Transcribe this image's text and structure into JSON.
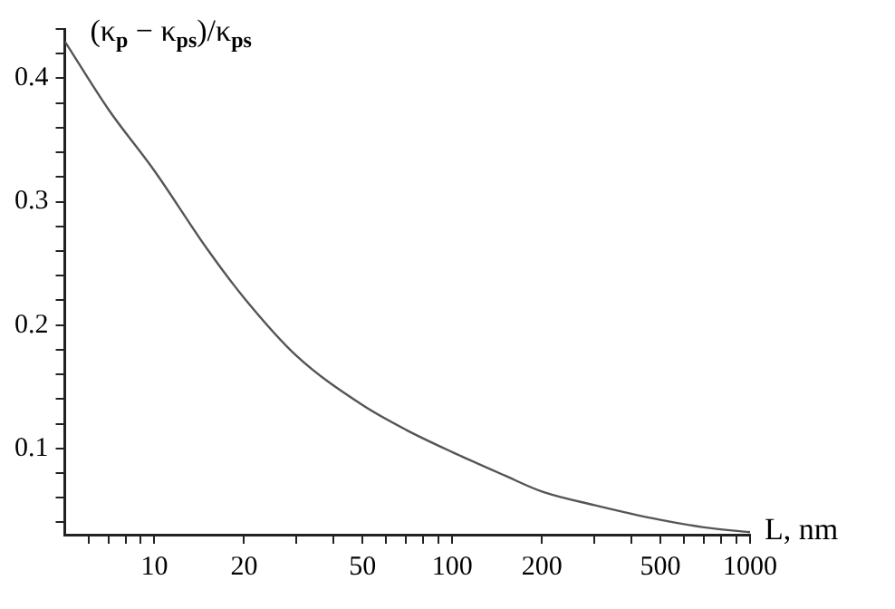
{
  "chart_data": {
    "type": "line",
    "xlabel": "L, nm",
    "ylabel": "(κ$_{p}$ − κ$_{ps}$)/κ$_{ps}$",
    "x": [
      5,
      7,
      10,
      15,
      20,
      30,
      50,
      70,
      100,
      150,
      200,
      300,
      500,
      700,
      1000
    ],
    "series": [
      {
        "color": "#555555",
        "values": [
          0.43,
          0.375,
          0.325,
          0.262,
          0.222,
          0.175,
          0.135,
          0.115,
          0.097,
          0.078,
          0.065,
          0.054,
          0.042,
          0.036,
          0.032
        ]
      }
    ],
    "log": "x",
    "xlim": [
      5,
      1000
    ],
    "ylim": [
      0.03,
      0.44
    ],
    "xticks": [
      {
        "value": 6,
        "label": null
      },
      {
        "value": 7,
        "label": null
      },
      {
        "value": 8,
        "label": null
      },
      {
        "value": 9,
        "label": null
      },
      10,
      20,
      {
        "value": 30,
        "label": null
      },
      {
        "value": 40,
        "label": null
      },
      50,
      {
        "value": 60,
        "label": null
      },
      {
        "value": 70,
        "label": null
      },
      {
        "value": 80,
        "label": null
      },
      {
        "value": 90,
        "label": null
      },
      100,
      200,
      {
        "value": 300,
        "label": null
      },
      {
        "value": 400,
        "label": null
      },
      500,
      {
        "value": 600,
        "label": null
      },
      {
        "value": 700,
        "label": null
      },
      {
        "value": 800,
        "label": null
      },
      {
        "value": 900,
        "label": null
      },
      1000
    ],
    "yticks": [
      {
        "value": 0.04,
        "label": null
      },
      {
        "value": 0.06,
        "label": null
      },
      {
        "value": 0.08,
        "label": null
      },
      0.1,
      {
        "value": 0.12,
        "label": null
      },
      {
        "value": 0.14,
        "label": null
      },
      {
        "value": 0.16,
        "label": null
      },
      {
        "value": 0.18,
        "label": null
      },
      0.2,
      {
        "value": 0.22,
        "label": null
      },
      {
        "value": 0.24,
        "label": null
      },
      {
        "value": 0.26,
        "label": null
      },
      {
        "value": 0.28,
        "label": null
      },
      0.3,
      {
        "value": 0.32,
        "label": null
      },
      {
        "value": 0.34,
        "label": null
      },
      {
        "value": 0.36,
        "label": null
      },
      {
        "value": 0.38,
        "label": null
      },
      0.4,
      {
        "value": 0.42,
        "label": null
      },
      {
        "value": 0.44,
        "label": null
      }
    ],
    "grid": false,
    "legend": false,
    "marker": "none",
    "line_style": "solid"
  }
}
